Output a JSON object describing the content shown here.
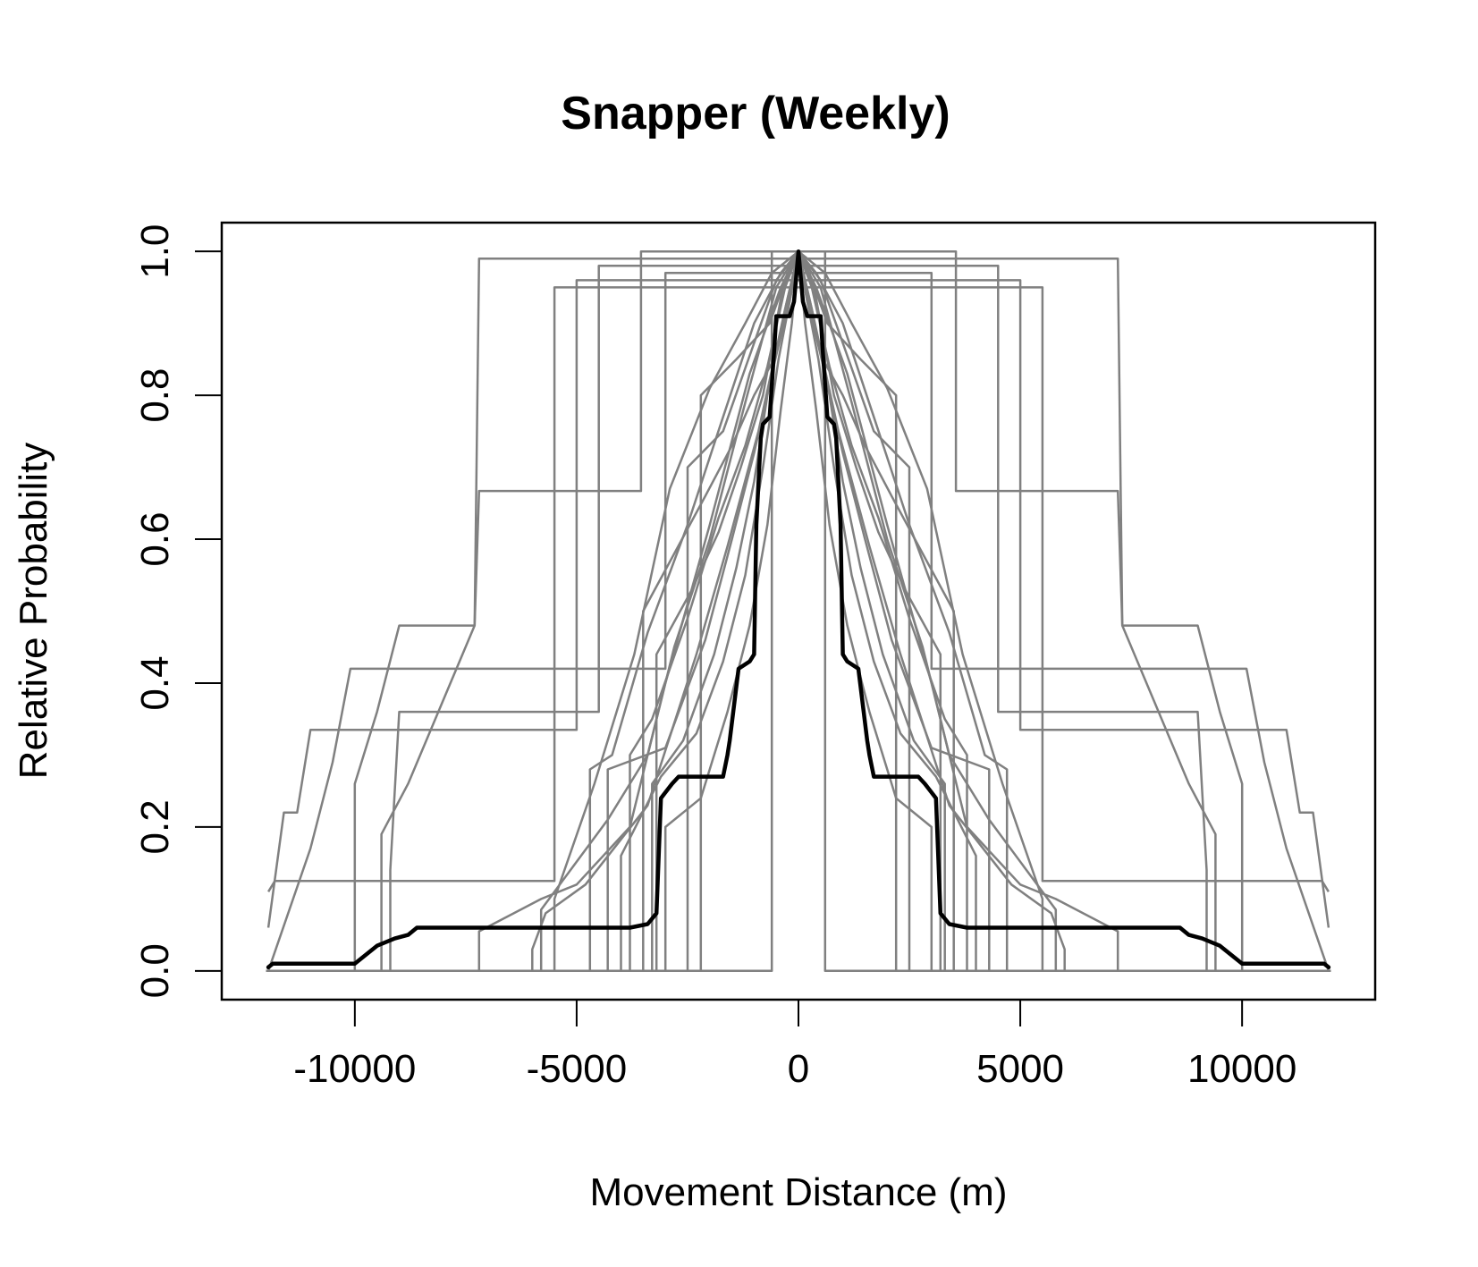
{
  "chart_data": {
    "type": "line",
    "title": "Snapper (Weekly)",
    "xlabel": "Movement Distance (m)",
    "ylabel": "Relative Probability",
    "xlim": [
      -13000,
      13000
    ],
    "ylim": [
      -0.04,
      1.04
    ],
    "x_ticks": [
      -10000,
      -5000,
      0,
      5000,
      10000
    ],
    "x_tick_labels": [
      "-10000",
      "-5000",
      "0",
      "5000",
      "10000"
    ],
    "y_ticks": [
      0.0,
      0.2,
      0.4,
      0.6,
      0.8,
      1.0
    ],
    "y_tick_labels": [
      "0.0",
      "0.2",
      "0.4",
      "0.6",
      "0.8",
      "1.0"
    ],
    "grid": false,
    "legend": "none",
    "colors": {
      "individual": "#808080",
      "mean": "#000000"
    },
    "symmetric_about_zero": true,
    "series": [
      {
        "role": "individual",
        "x": [
          0,
          600,
          600,
          12000
        ],
        "y": [
          1.0,
          1.0,
          0.0,
          0.0
        ]
      },
      {
        "role": "individual",
        "x": [
          0,
          300,
          650,
          1400,
          2200,
          2200,
          12000
        ],
        "y": [
          1.0,
          0.96,
          0.9,
          0.85,
          0.8,
          0.0,
          0.0
        ]
      },
      {
        "role": "individual",
        "x": [
          0,
          500,
          900,
          1300,
          1700,
          2500,
          2500,
          12000
        ],
        "y": [
          1.0,
          0.96,
          0.89,
          0.82,
          0.75,
          0.7,
          0.0,
          0.0
        ]
      },
      {
        "role": "individual",
        "x": [
          0,
          200,
          550,
          1000,
          1500,
          2100,
          2800,
          3500,
          3500,
          12000
        ],
        "y": [
          1.0,
          0.93,
          0.85,
          0.8,
          0.73,
          0.66,
          0.58,
          0.5,
          0.0,
          0.0
        ]
      },
      {
        "role": "individual",
        "x": [
          0,
          350,
          800,
          1300,
          1800,
          2400,
          3200,
          3200,
          12000
        ],
        "y": [
          1.0,
          0.95,
          0.8,
          0.7,
          0.61,
          0.53,
          0.44,
          0.0,
          0.0
        ]
      },
      {
        "role": "individual",
        "x": [
          0,
          300,
          700,
          1000,
          1400,
          1900,
          2600,
          3300,
          3300,
          12000
        ],
        "y": [
          1.0,
          0.92,
          0.8,
          0.68,
          0.56,
          0.44,
          0.32,
          0.26,
          0.0,
          0.0
        ]
      },
      {
        "role": "individual",
        "x": [
          0,
          200,
          450,
          800,
          1200,
          1700,
          2300,
          3100,
          4000,
          4000,
          12000
        ],
        "y": [
          1.0,
          0.93,
          0.85,
          0.7,
          0.55,
          0.43,
          0.33,
          0.27,
          0.16,
          0.0,
          0.0
        ]
      },
      {
        "role": "individual",
        "x": [
          0,
          150,
          400,
          700,
          1100,
          1600,
          2200,
          3000,
          3000,
          12000
        ],
        "y": [
          1.0,
          0.9,
          0.78,
          0.62,
          0.48,
          0.36,
          0.24,
          0.2,
          0.0,
          0.0
        ]
      },
      {
        "role": "individual",
        "x": [
          0,
          300,
          700,
          1200,
          1800,
          2500,
          3300,
          3800,
          3800,
          12000
        ],
        "y": [
          1.0,
          0.95,
          0.84,
          0.73,
          0.63,
          0.49,
          0.35,
          0.3,
          0.0,
          0.0
        ]
      },
      {
        "role": "individual",
        "x": [
          0,
          250,
          600,
          1000,
          1500,
          2100,
          3000,
          4300,
          4300,
          12000
        ],
        "y": [
          1.0,
          0.92,
          0.83,
          0.72,
          0.6,
          0.46,
          0.31,
          0.28,
          0.0,
          0.0
        ]
      },
      {
        "role": "individual",
        "x": [
          0,
          400,
          1000,
          1700,
          2500,
          3400,
          4200,
          4700,
          4700,
          12000
        ],
        "y": [
          1.0,
          0.97,
          0.9,
          0.77,
          0.62,
          0.47,
          0.3,
          0.28,
          0.0,
          0.0
        ]
      },
      {
        "role": "individual",
        "x": [
          0,
          600,
          1200,
          2000,
          2900,
          3700,
          4600,
          5500,
          5500,
          12000
        ],
        "y": [
          1.0,
          0.97,
          0.9,
          0.81,
          0.67,
          0.44,
          0.26,
          0.1,
          0.0,
          0.0
        ]
      },
      {
        "role": "individual",
        "x": [
          0,
          500,
          1200,
          2000,
          2800,
          3400,
          4300,
          5800,
          5800,
          12000
        ],
        "y": [
          1.0,
          0.95,
          0.79,
          0.6,
          0.45,
          0.3,
          0.21,
          0.085,
          0.0,
          0.0
        ]
      },
      {
        "role": "individual",
        "x": [
          0,
          300,
          900,
          1600,
          2300,
          3400,
          4800,
          5700,
          6000,
          6000,
          12000
        ],
        "y": [
          1.0,
          0.92,
          0.75,
          0.59,
          0.44,
          0.23,
          0.12,
          0.08,
          0.03,
          0.0,
          0.0
        ]
      },
      {
        "role": "individual",
        "x": [
          0,
          400,
          1100,
          2000,
          3000,
          3800,
          5000,
          5800,
          7200,
          7200,
          12000
        ],
        "y": [
          1.0,
          0.95,
          0.83,
          0.62,
          0.4,
          0.2,
          0.12,
          0.1,
          0.055,
          0.0,
          0.0
        ]
      },
      {
        "role": "individual",
        "x": [
          0,
          3550,
          3550,
          7200,
          7300,
          9000,
          9500,
          10000,
          10000,
          12000
        ],
        "y": [
          1.0,
          1.0,
          0.667,
          0.667,
          0.48,
          0.48,
          0.36,
          0.26,
          0.0,
          0.0
        ]
      },
      {
        "role": "individual",
        "x": [
          0,
          7200,
          7300,
          7300,
          8800,
          9400,
          9400,
          12000
        ],
        "y": [
          0.99,
          0.99,
          0.48,
          0.48,
          0.26,
          0.19,
          0.0,
          0.0
        ]
      },
      {
        "role": "individual",
        "x": [
          0,
          4500,
          4500,
          9000,
          9200,
          9200,
          12000
        ],
        "y": [
          0.98,
          0.98,
          0.36,
          0.36,
          0.14,
          0.0,
          0.0
        ]
      },
      {
        "role": "individual",
        "x": [
          0,
          5000,
          5000,
          11000,
          11300,
          11600,
          11950
        ],
        "y": [
          0.96,
          0.96,
          0.335,
          0.335,
          0.22,
          0.22,
          0.06
        ]
      },
      {
        "role": "individual",
        "x": [
          0,
          5500,
          5500,
          11800,
          11950
        ],
        "y": [
          0.95,
          0.95,
          0.125,
          0.125,
          0.11
        ]
      },
      {
        "role": "individual",
        "x": [
          0,
          3000,
          3000,
          10100,
          10500,
          11000,
          11950
        ],
        "y": [
          0.97,
          0.97,
          0.42,
          0.42,
          0.29,
          0.17,
          0.0
        ]
      },
      {
        "role": "mean",
        "x": [
          0,
          100,
          200,
          300,
          500,
          550,
          650,
          800,
          850,
          950,
          1000,
          1100,
          1350,
          1550,
          1600,
          1700,
          1900,
          2700,
          2850,
          3100,
          3200,
          3400,
          3800,
          8600,
          8800,
          9100,
          9500,
          10000,
          10100,
          11850,
          11950
        ],
        "y": [
          1.0,
          0.93,
          0.91,
          0.91,
          0.91,
          0.86,
          0.77,
          0.76,
          0.74,
          0.62,
          0.44,
          0.43,
          0.42,
          0.32,
          0.3,
          0.27,
          0.27,
          0.27,
          0.26,
          0.24,
          0.08,
          0.065,
          0.06,
          0.06,
          0.05,
          0.045,
          0.035,
          0.01,
          0.01,
          0.01,
          0.005
        ]
      }
    ]
  }
}
